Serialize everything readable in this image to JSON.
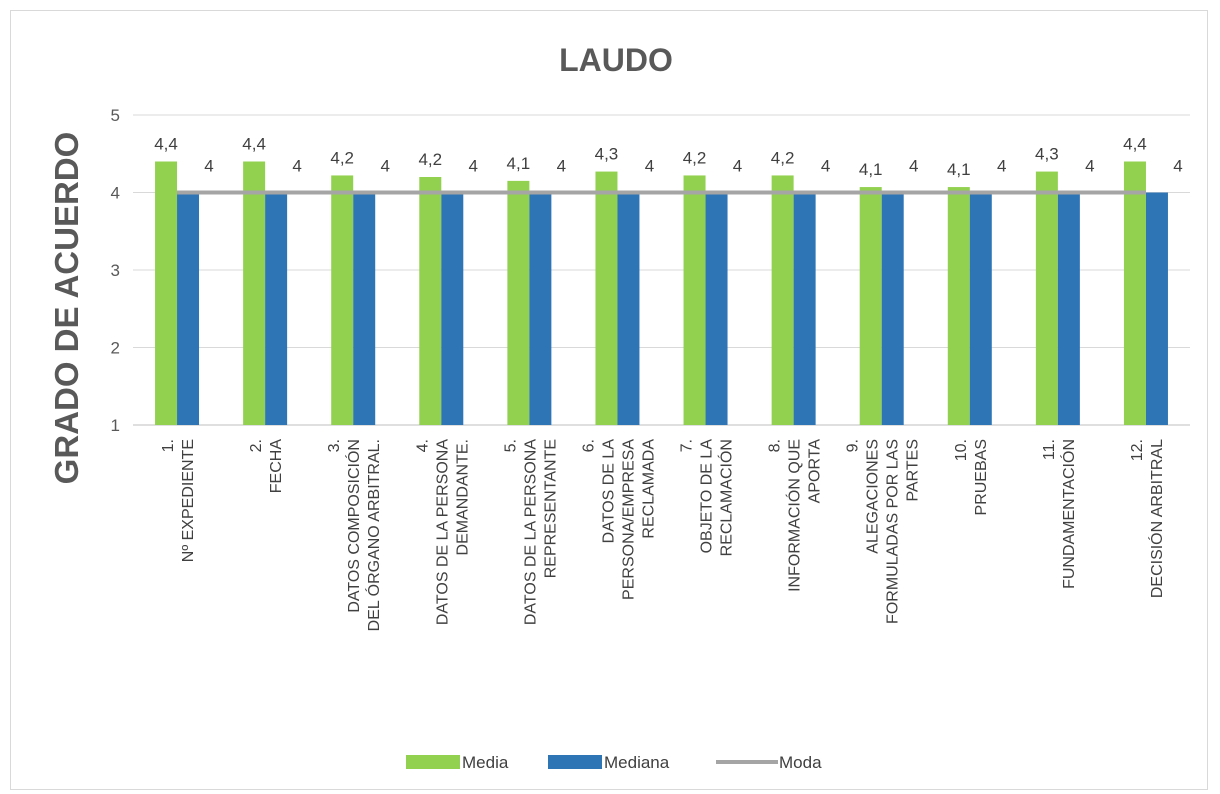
{
  "chart_data": {
    "type": "bar",
    "title": "LAUDO",
    "xlabel": "",
    "ylabel": "GRADO DE ACUERDO",
    "ylim": [
      1,
      5
    ],
    "yticks": [
      "1",
      "2",
      "3",
      "4",
      "5"
    ],
    "grid": true,
    "legend_position": "bottom",
    "categories": [
      [
        "1.",
        "Nº EXPEDIENTE"
      ],
      [
        "2.",
        "FECHA"
      ],
      [
        "3.",
        "DATOS COMPOSICIÓN",
        "DEL ÓRGANO ARBITRAL."
      ],
      [
        "4.",
        "DATOS DE LA PERSONA",
        "DEMANDANTE."
      ],
      [
        "5.",
        "DATOS DE LA PERSONA",
        "REPRESENTANTE"
      ],
      [
        "6.",
        "DATOS DE LA",
        "PERSONA/EMPRESA",
        "RECLAMADA"
      ],
      [
        "7.",
        "OBJETO DE LA",
        "RECLAMACIÓN"
      ],
      [
        "8.",
        "INFORMACIÓN QUE",
        "APORTA"
      ],
      [
        "9.",
        "ALEGACIONES",
        "FORMULADAS POR LAS",
        "PARTES"
      ],
      [
        "10.",
        "PRUEBAS"
      ],
      [
        "11.",
        "FUNDAMENTACIÓN"
      ],
      [
        "12.",
        "DECISIÓN ARBITRAL"
      ]
    ],
    "series": [
      {
        "name": "Media",
        "kind": "bar",
        "color": "#92d050",
        "values": [
          4.4,
          4.4,
          4.22,
          4.2,
          4.15,
          4.27,
          4.22,
          4.22,
          4.07,
          4.07,
          4.27,
          4.4
        ],
        "labels": [
          "4,4",
          "4,4",
          "4,2",
          "4,2",
          "4,1",
          "4,3",
          "4,2",
          "4,2",
          "4,1",
          "4,1",
          "4,3",
          "4,4"
        ]
      },
      {
        "name": "Mediana",
        "kind": "bar",
        "color": "#2e75b6",
        "values": [
          4,
          4,
          4,
          4,
          4,
          4,
          4,
          4,
          4,
          4,
          4,
          4
        ],
        "labels": [
          "4",
          "4",
          "4",
          "4",
          "4",
          "4",
          "4",
          "4",
          "4",
          "4",
          "4",
          "4"
        ]
      },
      {
        "name": "Moda",
        "kind": "line",
        "color": "#a5a5a5",
        "values": [
          4,
          4,
          4,
          4,
          4,
          4,
          4,
          4,
          4,
          4,
          4,
          4
        ]
      }
    ]
  }
}
